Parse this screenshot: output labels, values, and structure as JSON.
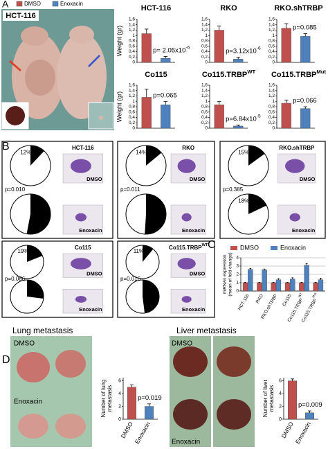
{
  "figure": {
    "panel_letters": [
      "A",
      "B",
      "C",
      "D"
    ],
    "panel_a": {
      "photo_label": "HCT-116",
      "legend": [
        {
          "name": "DMSO",
          "color": "#c0504d"
        },
        {
          "name": "Enoxacin",
          "color": "#4f81bd"
        }
      ]
    },
    "panel_b": {
      "boxes": [
        {
          "title": "HCT-116",
          "p": "p=0.010",
          "image_labels": [
            "DMSO",
            "Enoxacin"
          ]
        },
        {
          "title": "RKO",
          "p": "p=0.011",
          "image_labels": [
            "DMSO",
            "Enoxacin"
          ]
        },
        {
          "title": "RKO.shTRBP",
          "p": "p=0.385",
          "image_labels": [
            "DMSO",
            "Enoxacin"
          ]
        },
        {
          "title": "Co115",
          "p": "p=0.086",
          "image_labels": [
            "DMSO",
            "Enoxacin"
          ]
        },
        {
          "title": "Co115.TRBP",
          "title_sup": "WT",
          "p": "p=0.016",
          "image_labels": [
            "DMSO",
            "Enoxacin"
          ]
        }
      ]
    },
    "panel_d": {
      "lung": {
        "title": "Lung metastasis",
        "photo_labels": [
          "DMSO",
          "Enoxacin"
        ]
      },
      "liver": {
        "title": "Liver metastasis",
        "photo_labels": [
          "DMSO",
          "Enoxacin"
        ]
      }
    }
  },
  "chart_data": [
    {
      "type": "bar",
      "title": "HCT-116",
      "annotation": "p= 2.05x10",
      "annotation_sup": "-6",
      "y_label": "Weight (gr)",
      "values": [
        1.07,
        0.15
      ],
      "errors": [
        0.17,
        0.07
      ],
      "ylim": [
        0,
        1.6
      ],
      "yticks": [
        0,
        {
          "value": 0.2,
          "label": "0,2"
        },
        {
          "value": 0.4,
          "label": "0,4"
        },
        {
          "value": 0.6,
          "label": "0,6"
        },
        {
          "value": 0.8,
          "label": "0,8"
        },
        1,
        {
          "value": 1.2,
          "label": "1,2"
        },
        {
          "value": 1.4,
          "label": "1,4"
        },
        {
          "value": 1.6,
          "label": "1,6"
        }
      ]
    },
    {
      "type": "bar",
      "title": "RKO",
      "annotation": "p=3.12x10",
      "annotation_sup": "-6",
      "values": [
        1.2,
        0.12
      ],
      "errors": [
        0.15,
        0.07
      ],
      "ylim": [
        0,
        1.6
      ],
      "yticks": [
        0,
        {
          "value": 0.2,
          "label": "0,2"
        },
        {
          "value": 0.4,
          "label": "0,4"
        },
        {
          "value": 0.6,
          "label": "0,6"
        },
        {
          "value": 0.8,
          "label": "0,8"
        },
        1,
        {
          "value": 1.2,
          "label": "1,2"
        },
        {
          "value": 1.4,
          "label": "1,4"
        },
        {
          "value": 1.6,
          "label": "1,6"
        }
      ]
    },
    {
      "type": "bar",
      "title": "RKO.shTRBP",
      "annotation": "p=0.085",
      "values": [
        1.27,
        0.97
      ],
      "errors": [
        0.17,
        0.1
      ],
      "ylim": [
        0,
        1.6
      ],
      "yticks": [
        0,
        {
          "value": 0.2,
          "label": "0,2"
        },
        {
          "value": 0.4,
          "label": "0,4"
        },
        {
          "value": 0.6,
          "label": "0,6"
        },
        {
          "value": 0.8,
          "label": "0,8"
        },
        1,
        {
          "value": 1.2,
          "label": "1,2"
        },
        {
          "value": 1.4,
          "label": "1,4"
        },
        {
          "value": 1.6,
          "label": "1,6"
        }
      ]
    },
    {
      "type": "bar",
      "title": "Co115",
      "annotation": "p=0.065",
      "y_label": "Weight (gr)",
      "values": [
        1.15,
        0.87
      ],
      "errors": [
        0.3,
        0.12
      ],
      "ylim": [
        0,
        1.6
      ],
      "yticks": [
        0,
        {
          "value": 0.2,
          "label": "0,2"
        },
        {
          "value": 0.4,
          "label": "0,4"
        },
        {
          "value": 0.6,
          "label": "0,6"
        },
        {
          "value": 0.8,
          "label": "0,8"
        },
        1,
        {
          "value": 1.2,
          "label": "1,2"
        },
        {
          "value": 1.4,
          "label": "1,4"
        },
        {
          "value": 1.6,
          "label": "1,6"
        }
      ]
    },
    {
      "type": "bar",
      "title": "Co115.TRBP",
      "title_sup": "WT",
      "annotation": "p=6.84x10",
      "annotation_sup": "-5",
      "values": [
        0.87,
        0.08
      ],
      "errors": [
        0.12,
        0.04
      ],
      "ylim": [
        0,
        1.6
      ],
      "yticks": [
        0,
        {
          "value": 0.2,
          "label": "0,2"
        },
        {
          "value": 0.4,
          "label": "0,4"
        },
        {
          "value": 0.6,
          "label": "0,6"
        },
        {
          "value": 0.8,
          "label": "0,8"
        },
        1,
        {
          "value": 1.2,
          "label": "1,2"
        },
        {
          "value": 1.4,
          "label": "1,4"
        },
        {
          "value": 1.6,
          "label": "1,6"
        }
      ]
    },
    {
      "type": "bar",
      "title": "Co115.TRBP",
      "title_sup": "Mut",
      "annotation": "p=0.066",
      "values": [
        0.93,
        0.73
      ],
      "errors": [
        0.12,
        0.07
      ],
      "ylim": [
        0,
        1.6
      ],
      "yticks": [
        0,
        {
          "value": 0.2,
          "label": "0,2"
        },
        {
          "value": 0.4,
          "label": "0,4"
        },
        {
          "value": 0.6,
          "label": "0,6"
        },
        {
          "value": 0.8,
          "label": "0,8"
        },
        1,
        {
          "value": 1.2,
          "label": "1,2"
        },
        {
          "value": 1.4,
          "label": "1,4"
        },
        {
          "value": 1.6,
          "label": "1,6"
        }
      ]
    },
    {
      "type": "pie",
      "values": [
        12
      ],
      "value_labels": [
        "12%"
      ]
    },
    {
      "type": "pie",
      "values": [
        53
      ],
      "value_labels": [
        "53%"
      ]
    },
    {
      "type": "pie",
      "values": [
        14
      ],
      "value_labels": [
        "14%"
      ]
    },
    {
      "type": "pie",
      "values": [
        51
      ],
      "value_labels": [
        "51%"
      ]
    },
    {
      "type": "pie",
      "values": [
        15
      ],
      "value_labels": [
        "15%"
      ]
    },
    {
      "type": "pie",
      "values": [
        18
      ],
      "value_labels": [
        "18%"
      ]
    },
    {
      "type": "pie",
      "values": [
        19
      ],
      "value_labels": [
        "19%"
      ]
    },
    {
      "type": "pie",
      "values": [
        27
      ],
      "value_labels": [
        "27%"
      ]
    },
    {
      "type": "pie",
      "values": [
        11
      ],
      "value_labels": [
        "11%"
      ]
    },
    {
      "type": "pie",
      "values": [
        48
      ],
      "value_labels": [
        "48%"
      ]
    },
    {
      "type": "bar",
      "y_label": [
        "miRNAs expression",
        "(mean of fold change)"
      ],
      "categories": [
        "HCT-116",
        "RKO",
        "RKO.shTRBP",
        "Co115",
        "Co115.TRBP",
        "Co115.TRBP"
      ],
      "category_sups": [
        null,
        null,
        null,
        null,
        "WT",
        "Mut"
      ],
      "series": [
        {
          "name": "DMSO",
          "color": "#c0504d",
          "values": [
            1,
            1,
            1,
            1,
            1,
            1
          ],
          "errors": [
            0.05,
            0.05,
            0.05,
            0.05,
            0.05,
            0.05
          ]
        },
        {
          "name": "Enoxacin",
          "color": "#4f81bd",
          "values": [
            2.6,
            2.55,
            1.35,
            1.45,
            3.1,
            1.35
          ],
          "errors": [
            0.12,
            0.1,
            0.15,
            0.15,
            0.2,
            0.2
          ]
        }
      ],
      "ylim": [
        0,
        4
      ],
      "yticks": [
        0,
        1,
        2,
        3,
        4
      ],
      "grid": true
    },
    {
      "type": "bar",
      "y_label": [
        "Number of lung",
        "metastasis"
      ],
      "annotation": "p=0.019",
      "categories": [
        "DMSO",
        "Enoxacin"
      ],
      "values": [
        5,
        2
      ],
      "errors": [
        0.35,
        0.4
      ],
      "colors": [
        "#c0504d",
        "#4f81bd"
      ],
      "ylim": [
        0,
        6.5
      ],
      "yticks": [
        0,
        2,
        4,
        6
      ]
    },
    {
      "type": "bar",
      "y_label": [
        "Number of liver",
        "metastasis"
      ],
      "annotation": "p=0.009",
      "categories": [
        "DMSO",
        "Enoxacin"
      ],
      "values": [
        6,
        1
      ],
      "errors": [
        0.3,
        0.3
      ],
      "colors": [
        "#c0504d",
        "#4f81bd"
      ],
      "ylim": [
        0,
        6.5
      ],
      "yticks": [
        0,
        2,
        4,
        6
      ]
    }
  ]
}
